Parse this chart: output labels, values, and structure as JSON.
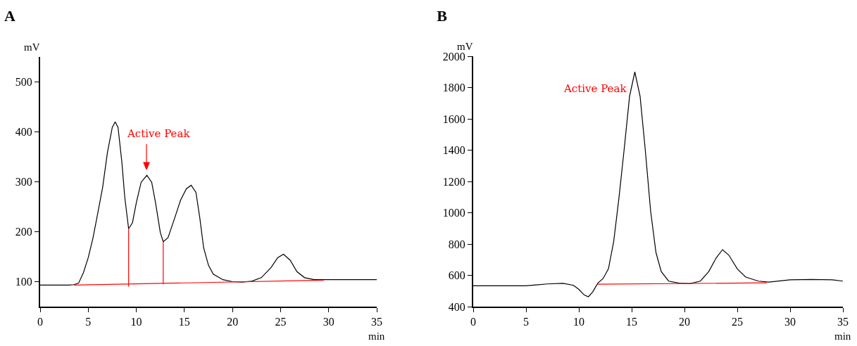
{
  "chart_data": [
    {
      "type": "line",
      "title": "A",
      "xlabel": "min",
      "ylabel": "mV",
      "xlim": [
        0,
        35
      ],
      "ylim": [
        50,
        550
      ],
      "xticks": [
        0,
        5,
        10,
        15,
        20,
        25,
        30,
        35
      ],
      "yticks": [
        100,
        200,
        300,
        400,
        500
      ],
      "grid": false,
      "annotations": [
        "Active Peak"
      ],
      "series": [
        {
          "color": "#000000",
          "x": [
            0,
            3,
            3.5,
            4,
            4.5,
            5,
            5.5,
            6,
            6.5,
            7,
            7.5,
            7.8,
            8.1,
            8.5,
            8.8,
            9.2,
            9.6,
            10,
            10.5,
            11.1,
            11.6,
            12,
            12.5,
            12.8,
            13.3,
            14,
            14.6,
            15.2,
            15.7,
            16.2,
            16.6,
            17,
            17.5,
            18,
            19,
            20,
            21,
            22,
            23,
            24,
            24.7,
            25.3,
            26,
            26.7,
            27.5,
            28.5,
            30,
            35
          ],
          "values": [
            93,
            93,
            94,
            97,
            118,
            148,
            188,
            238,
            289,
            359,
            409,
            420,
            409,
            339,
            269,
            206,
            218,
            258,
            299,
            313,
            299,
            258,
            198,
            180,
            188,
            228,
            263,
            286,
            293,
            279,
            228,
            168,
            133,
            115,
            104,
            100,
            99,
            101,
            108,
            128,
            148,
            155,
            143,
            120,
            108,
            104,
            104,
            104
          ]
        },
        {
          "color": "#ff0000",
          "x": [
            3.5,
            29.5
          ],
          "values": [
            93,
            103
          ]
        },
        {
          "color": "#ff0000",
          "x": [
            9.2,
            9.2
          ],
          "values": [
            90,
            206
          ]
        },
        {
          "color": "#ff0000",
          "x": [
            12.8,
            12.8
          ],
          "values": [
            95,
            180
          ]
        }
      ]
    },
    {
      "type": "line",
      "title": "B",
      "xlabel": "min",
      "ylabel": "mV",
      "xlim": [
        0,
        35
      ],
      "ylim": [
        400,
        2000
      ],
      "xticks": [
        0,
        5,
        10,
        15,
        20,
        25,
        30,
        35
      ],
      "yticks": [
        400,
        600,
        800,
        1000,
        1200,
        1400,
        1600,
        1800,
        2000
      ],
      "grid": false,
      "annotations": [
        "Active Peak"
      ],
      "series": [
        {
          "color": "#000000",
          "x": [
            0,
            5,
            7,
            8.5,
            9.5,
            10,
            10.5,
            10.9,
            11.3,
            11.8,
            12.3,
            12.8,
            13.3,
            13.8,
            14.3,
            14.8,
            15.3,
            15.8,
            16.3,
            16.8,
            17.3,
            17.8,
            18.5,
            19.5,
            20.5,
            21.5,
            22.3,
            23,
            23.6,
            24.2,
            25,
            25.8,
            27,
            28,
            30,
            32,
            34,
            35
          ],
          "values": [
            533,
            533,
            545,
            549,
            536,
            510,
            475,
            463,
            493,
            550,
            580,
            641,
            816,
            1096,
            1411,
            1743,
            1900,
            1743,
            1393,
            1008,
            746,
            624,
            563,
            550,
            547,
            563,
            624,
            711,
            764,
            729,
            641,
            589,
            563,
            557,
            571,
            574,
            571,
            563
          ]
        },
        {
          "color": "#ff0000",
          "x": [
            11.8,
            27.8
          ],
          "values": [
            543,
            552
          ]
        }
      ]
    }
  ]
}
